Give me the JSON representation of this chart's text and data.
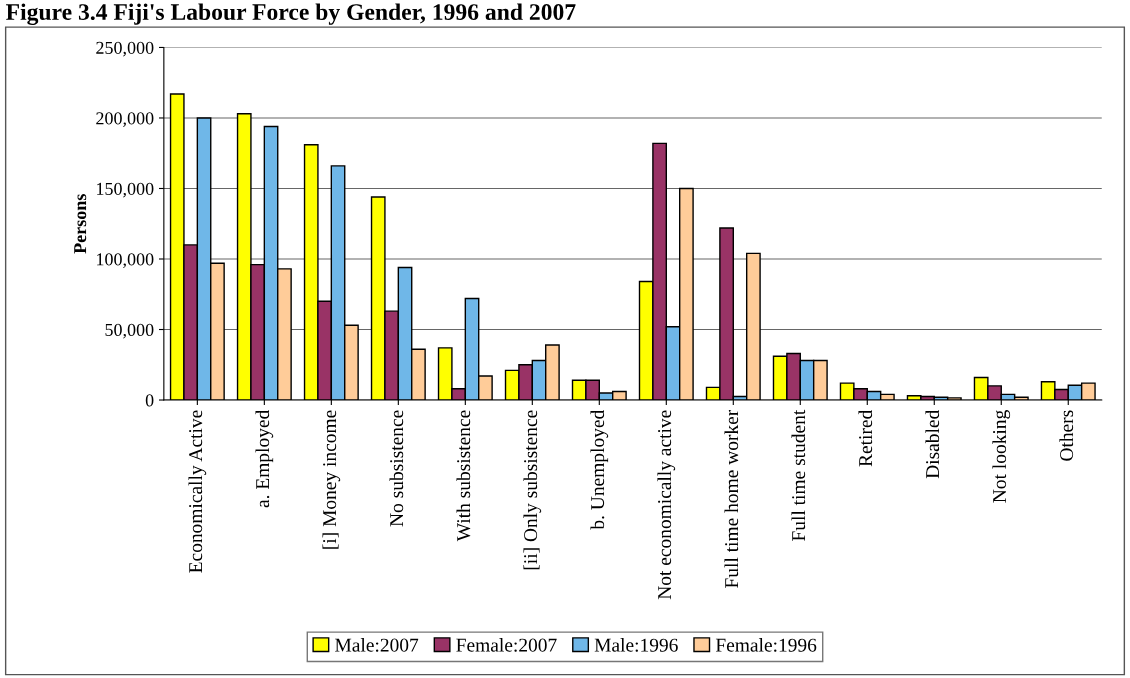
{
  "chart_data": {
    "type": "bar",
    "title": "Figure 3.4 Fiji's Labour Force by Gender, 1996 and 2007",
    "ylabel": "Persons",
    "categories": [
      "Economically Active",
      "a. Employed",
      "[i] Money income",
      "No subsistence",
      "With subsistence",
      "[ii] Only subsistence",
      "b. Unemployed",
      "Not economically active",
      "Full time home worker",
      "Full time student",
      "Retired",
      "Disabled",
      "Not looking",
      "Others"
    ],
    "series": [
      {
        "name": "Male:2007",
        "color": "#ffff00",
        "values": [
          217000,
          203000,
          181000,
          144000,
          37000,
          21000,
          14000,
          84000,
          9000,
          31000,
          12000,
          3000,
          16000,
          13000
        ]
      },
      {
        "name": "Female:2007",
        "color": "#993366",
        "values": [
          110000,
          96000,
          70000,
          63000,
          8000,
          25000,
          14000,
          182000,
          122000,
          33000,
          8000,
          2500,
          10000,
          7500
        ]
      },
      {
        "name": "Male:1996",
        "color": "#6fb7e8",
        "values": [
          200000,
          194000,
          166000,
          94000,
          72000,
          28000,
          5000,
          52000,
          2500,
          28000,
          6000,
          2000,
          4000,
          10500
        ]
      },
      {
        "name": "Female:1996",
        "color": "#ffcc99",
        "values": [
          97000,
          93000,
          53000,
          36000,
          17000,
          39000,
          6000,
          150000,
          104000,
          28000,
          4000,
          1500,
          2000,
          12000
        ]
      }
    ],
    "ylim": [
      0,
      250000
    ],
    "yticks": [
      {
        "value": 0,
        "label": "0"
      },
      {
        "value": 50000,
        "label": "50,000"
      },
      {
        "value": 100000,
        "label": "100,000"
      },
      {
        "value": 150000,
        "label": "150,000"
      },
      {
        "value": 200000,
        "label": "200,000"
      },
      {
        "value": 250000,
        "label": "250,000"
      }
    ],
    "grid": "y",
    "legend": "bottom"
  }
}
